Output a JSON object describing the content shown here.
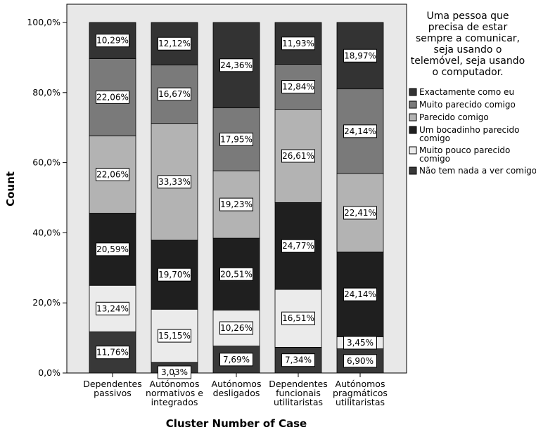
{
  "chart_data": {
    "type": "bar",
    "stacked": true,
    "categories": [
      [
        "Dependentes",
        "passivos"
      ],
      [
        "Autónomos",
        "normativos e",
        "integrados"
      ],
      [
        "Autónomos",
        "desligados"
      ],
      [
        "Dependentes",
        "funcionais",
        "utilitaristas"
      ],
      [
        "Autónomos",
        "pragmáticos",
        "utilitaristas"
      ]
    ],
    "xlabel": "Cluster Number of Case",
    "ylabel": "Count",
    "ylim": [
      0,
      100
    ],
    "yticks": [
      "0,0%",
      "20,0%",
      "40,0%",
      "60,0%",
      "80,0%",
      "100,0%"
    ],
    "legend": {
      "title": [
        "Uma pessoa que",
        "precisa de estar",
        "sempre a comunicar,",
        "seja usando o",
        "telemóvel, seja usando",
        "o computador."
      ],
      "position": "right"
    },
    "series": [
      {
        "name": [
          "Não tem nada a ver comigo"
        ],
        "color": "#383838",
        "values": [
          11.76,
          3.03,
          7.69,
          7.34,
          6.9
        ],
        "labels": [
          "11,76%",
          "3,03%",
          "7,69%",
          "7,34%",
          "6,90%"
        ]
      },
      {
        "name": [
          "Muito pouco parecido",
          "comigo"
        ],
        "color": "#ebebeb",
        "values": [
          13.24,
          15.15,
          10.26,
          16.51,
          3.45
        ],
        "labels": [
          "13,24%",
          "15,15%",
          "10,26%",
          "16,51%",
          "3,45%"
        ]
      },
      {
        "name": [
          "Um bocadinho parecido",
          "comigo"
        ],
        "color": "#1f1f1f",
        "values": [
          20.59,
          19.7,
          20.51,
          24.77,
          24.14
        ],
        "labels": [
          "20,59%",
          "19,70%",
          "20,51%",
          "24,77%",
          "24,14%"
        ]
      },
      {
        "name": [
          "Parecido comigo"
        ],
        "color": "#b3b3b3",
        "values": [
          22.06,
          33.33,
          19.23,
          26.61,
          22.41
        ],
        "labels": [
          "22,06%",
          "33,33%",
          "19,23%",
          "26,61%",
          "22,41%"
        ]
      },
      {
        "name": [
          "Muito parecido comigo"
        ],
        "color": "#7a7a7a",
        "values": [
          22.06,
          16.67,
          17.95,
          12.84,
          24.14
        ],
        "labels": [
          "22,06%",
          "16,67%",
          "17,95%",
          "12,84%",
          "24,14%"
        ]
      },
      {
        "name": [
          "Exactamente como eu"
        ],
        "color": "#333333",
        "values": [
          10.29,
          12.12,
          24.36,
          11.93,
          18.97
        ],
        "labels": [
          "10,29%",
          "12,12%",
          "24,36%",
          "11,93%",
          "18,97%"
        ]
      }
    ],
    "plot_background": "#e8e8e8",
    "grid": false
  }
}
